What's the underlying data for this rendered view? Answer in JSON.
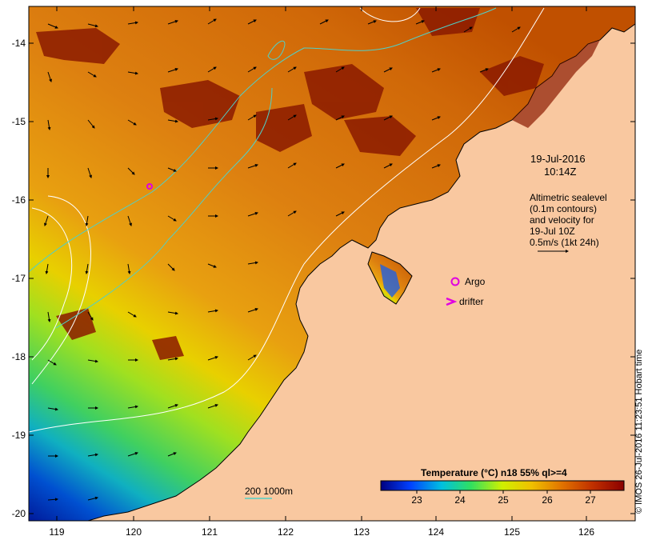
{
  "map": {
    "date_label": "19-Jul-2016",
    "time_label": "10:14Z",
    "info_lines": [
      "Altimetric sealevel",
      "(0.1m contours)",
      "and velocity for",
      "19-Jul 10Z",
      "0.5m/s (1kt 24h)"
    ],
    "legend_argo": "Argo",
    "legend_drifter": "drifter",
    "isobath_label": "200  1000m",
    "credit": "© IMOS 26-Jul-2016 11:23:51  Hobart time",
    "colors": {
      "land": "#f9c8a0",
      "coast": "#000000",
      "argo": "#e000e0",
      "isobath": "#50d0c8",
      "sealevel_contour": "#ffffff"
    },
    "lat_ticks": [
      "-14",
      "-15",
      "-16",
      "-17",
      "-18",
      "-19",
      "-20"
    ],
    "lon_ticks": [
      "119",
      "120",
      "121",
      "122",
      "123",
      "124",
      "125",
      "126"
    ],
    "colorbar": {
      "title": "Temperature (°C) n18 55% ql>=4",
      "tick_labels": [
        "23",
        "24",
        "25",
        "26",
        "27"
      ],
      "min": 22.2,
      "max": 27.8,
      "stops": [
        "#000080",
        "#0040ff",
        "#00c0e0",
        "#30e060",
        "#d0f000",
        "#f0c000",
        "#e07000",
        "#c03000",
        "#8b0000"
      ]
    }
  }
}
